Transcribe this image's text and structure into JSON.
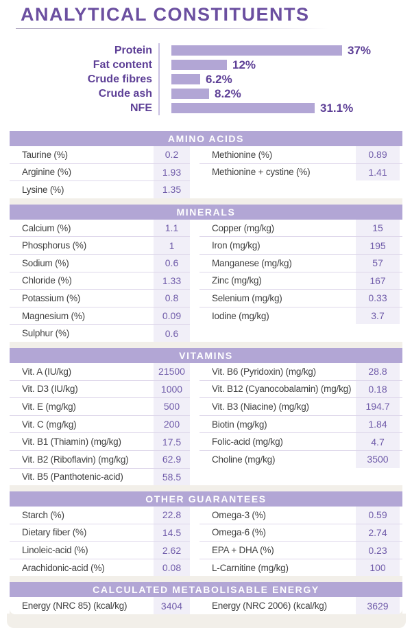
{
  "page_title": "ANALYTICAL CONSTITUENTS",
  "accent_colors": {
    "title_purple": "#6b4fa0",
    "dark_purple_text": "#5d3f96",
    "bar_and_band_purple": "#b2a6d5",
    "value_text_purple": "#6f5ba9",
    "value_cell_bg": "#f1eff8",
    "label_text": "#3f3f3f",
    "panel_beige": "#f2efe9"
  },
  "chart_data": {
    "type": "bar",
    "orientation": "horizontal",
    "categories": [
      "Protein",
      "Fat content",
      "Crude fibres",
      "Crude ash",
      "NFE"
    ],
    "values": [
      37,
      12,
      6.2,
      8.2,
      31.1
    ],
    "value_labels": [
      "37%",
      "12%",
      "6.2%",
      "8.2%",
      "31.1%"
    ],
    "title": "",
    "xlabel": "",
    "ylabel": "",
    "xlim": [
      0,
      37
    ],
    "grid": false,
    "legend": false,
    "bar_color": "#b2a6d5"
  },
  "sections": [
    {
      "header": "AMINO ACIDS",
      "rows_left": [
        {
          "label": "Taurine (%)",
          "value": "0.2"
        },
        {
          "label": "Arginine (%)",
          "value": "1.93"
        },
        {
          "label": "Lysine (%)",
          "value": "1.35"
        }
      ],
      "rows_right": [
        {
          "label": "Methionine (%)",
          "value": "0.89"
        },
        {
          "label": "Methionine + cystine (%)",
          "value": "1.41"
        }
      ]
    },
    {
      "header": "MINERALS",
      "rows_left": [
        {
          "label": "Calcium (%)",
          "value": "1.1"
        },
        {
          "label": "Phosphorus (%)",
          "value": "1"
        },
        {
          "label": "Sodium (%)",
          "value": "0.6"
        },
        {
          "label": "Chloride (%)",
          "value": "1.33"
        },
        {
          "label": "Potassium (%)",
          "value": "0.8"
        },
        {
          "label": "Magnesium (%)",
          "value": "0.09"
        },
        {
          "label": "Sulphur (%)",
          "value": "0.6"
        }
      ],
      "rows_right": [
        {
          "label": "Copper (mg/kg)",
          "value": "15"
        },
        {
          "label": "Iron (mg/kg)",
          "value": "195"
        },
        {
          "label": "Manganese (mg/kg)",
          "value": "57"
        },
        {
          "label": "Zinc (mg/kg)",
          "value": "167"
        },
        {
          "label": "Selenium (mg/kg)",
          "value": "0.33"
        },
        {
          "label": "Iodine (mg/kg)",
          "value": "3.7"
        }
      ]
    },
    {
      "header": "VITAMINS",
      "rows_left": [
        {
          "label": "Vit. A (IU/kg)",
          "value": "21500"
        },
        {
          "label": "Vit. D3 (IU/kg)",
          "value": "1000"
        },
        {
          "label": "Vit. E (mg/kg)",
          "value": "500"
        },
        {
          "label": "Vit. C (mg/kg)",
          "value": "200"
        },
        {
          "label": "Vit. B1 (Thiamin) (mg/kg)",
          "value": "17.5"
        },
        {
          "label": "Vit. B2 (Riboflavin) (mg/kg)",
          "value": "62.9"
        },
        {
          "label": "Vit. B5 (Panthotenic-acid)",
          "value": "58.5"
        }
      ],
      "rows_right": [
        {
          "label": "Vit. B6 (Pyridoxin) (mg/kg)",
          "value": "28.8"
        },
        {
          "label": "Vit. B12 (Cyanocobalamin) (mg/kg)",
          "value": "0.18"
        },
        {
          "label": "Vit. B3 (Niacine) (mg/kg)",
          "value": "194.7"
        },
        {
          "label": "Biotin (mg/kg)",
          "value": "1.84"
        },
        {
          "label": "Folic-acid (mg/kg)",
          "value": "4.7"
        },
        {
          "label": "Choline (mg/kg)",
          "value": "3500"
        }
      ]
    },
    {
      "header": "OTHER GUARANTEES",
      "rows_left": [
        {
          "label": "Starch (%)",
          "value": "22.8"
        },
        {
          "label": "Dietary fiber (%)",
          "value": "14.5"
        },
        {
          "label": "Linoleic-acid (%)",
          "value": "2.62"
        },
        {
          "label": "Arachidonic-acid (%)",
          "value": "0.08"
        }
      ],
      "rows_right": [
        {
          "label": "Omega-3 (%)",
          "value": "0.59"
        },
        {
          "label": "Omega-6 (%)",
          "value": "2.74"
        },
        {
          "label": "EPA + DHA (%)",
          "value": "0.23"
        },
        {
          "label": "L-Carnitine (mg/kg)",
          "value": "100"
        }
      ]
    },
    {
      "header": "CALCULATED METABOLISABLE ENERGY",
      "rows_left": [
        {
          "label": "Energy (NRC 85) (kcal/kg)",
          "value": "3404"
        }
      ],
      "rows_right": [
        {
          "label": "Energy (NRC 2006) (kcal/kg)",
          "value": "3629"
        }
      ]
    }
  ]
}
